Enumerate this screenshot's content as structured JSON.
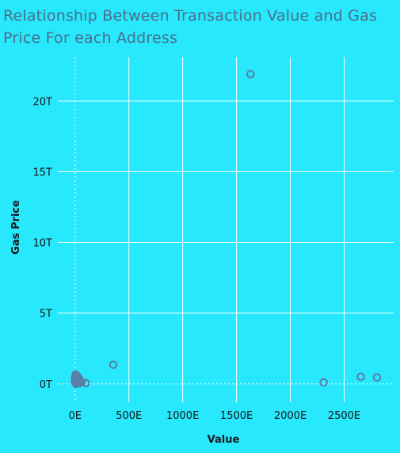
{
  "title": "Relationship Between Transaction Value and Gas Price For each Address",
  "colors": {
    "background": "#27e8fc",
    "marker": "#5b7fa8",
    "grid": "#ffffff",
    "title": "#4a6f8a"
  },
  "chart_data": {
    "type": "scatter",
    "title": "Relationship Between Transaction Value and Gas Price For each Address",
    "xlabel": "Value",
    "ylabel": "Gas Price",
    "xlim": [
      -160,
      2960
    ],
    "ylim": [
      -1.3,
      23.1
    ],
    "x_ticks": [
      0,
      500,
      1000,
      1500,
      2000,
      2500
    ],
    "x_tick_labels": [
      "0E",
      "500E",
      "1000E",
      "1500E",
      "2000E",
      "2500E"
    ],
    "y_ticks": [
      0,
      5,
      10,
      15,
      20
    ],
    "y_tick_labels": [
      "0T",
      "5T",
      "10T",
      "15T",
      "20T"
    ],
    "grid": true,
    "marker": "hollow-circle",
    "points": [
      {
        "x": 1630,
        "y": 21.9
      },
      {
        "x": 355,
        "y": 1.35
      },
      {
        "x": 2310,
        "y": 0.1
      },
      {
        "x": 2655,
        "y": 0.5
      },
      {
        "x": 2805,
        "y": 0.45
      },
      {
        "x": 100,
        "y": 0.05
      },
      {
        "x": 55,
        "y": 0.15
      },
      {
        "x": 30,
        "y": 0.25
      },
      {
        "x": 20,
        "y": 0.35
      },
      {
        "x": 5,
        "y": 0.65
      },
      {
        "x": 10,
        "y": 0.5
      },
      {
        "x": 0,
        "y": 0.45
      },
      {
        "x": 15,
        "y": 0.3
      },
      {
        "x": 25,
        "y": 0.1
      },
      {
        "x": 5,
        "y": 0.2
      },
      {
        "x": 40,
        "y": 0.05
      },
      {
        "x": 0,
        "y": 0.1
      },
      {
        "x": 10,
        "y": 0.0
      },
      {
        "x": 35,
        "y": 0.4
      },
      {
        "x": 20,
        "y": 0.55
      },
      {
        "x": 0,
        "y": 0.3
      },
      {
        "x": 45,
        "y": 0.2
      },
      {
        "x": 15,
        "y": 0.6
      },
      {
        "x": 60,
        "y": 0.1
      }
    ]
  }
}
